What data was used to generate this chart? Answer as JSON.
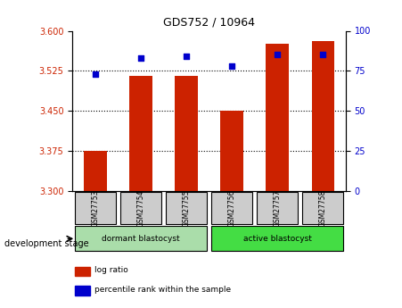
{
  "title": "GDS752 / 10964",
  "samples": [
    "GSM27753",
    "GSM27754",
    "GSM27755",
    "GSM27756",
    "GSM27757",
    "GSM27758"
  ],
  "log_ratio": [
    3.375,
    3.515,
    3.515,
    3.45,
    3.575,
    3.58
  ],
  "percentile_rank": [
    73,
    83,
    84,
    78,
    85,
    85
  ],
  "ylim_left": [
    3.3,
    3.6
  ],
  "ylim_right": [
    0,
    100
  ],
  "yticks_left": [
    3.3,
    3.375,
    3.45,
    3.525,
    3.6
  ],
  "yticks_right": [
    0,
    25,
    50,
    75,
    100
  ],
  "bar_color": "#cc2200",
  "dot_color": "#0000cc",
  "grid_color": "#000000",
  "groups": [
    {
      "label": "dormant blastocyst",
      "indices": [
        0,
        1,
        2
      ],
      "color": "#aaddaa"
    },
    {
      "label": "active blastocyst",
      "indices": [
        3,
        4,
        5
      ],
      "color": "#44dd44"
    }
  ],
  "group_label_prefix": "development stage",
  "legend_items": [
    {
      "label": "log ratio",
      "color": "#cc2200"
    },
    {
      "label": "percentile rank within the sample",
      "color": "#0000cc"
    }
  ],
  "bar_bottom": 3.3,
  "right_axis_color": "#0000cc",
  "left_axis_color": "#cc2200"
}
